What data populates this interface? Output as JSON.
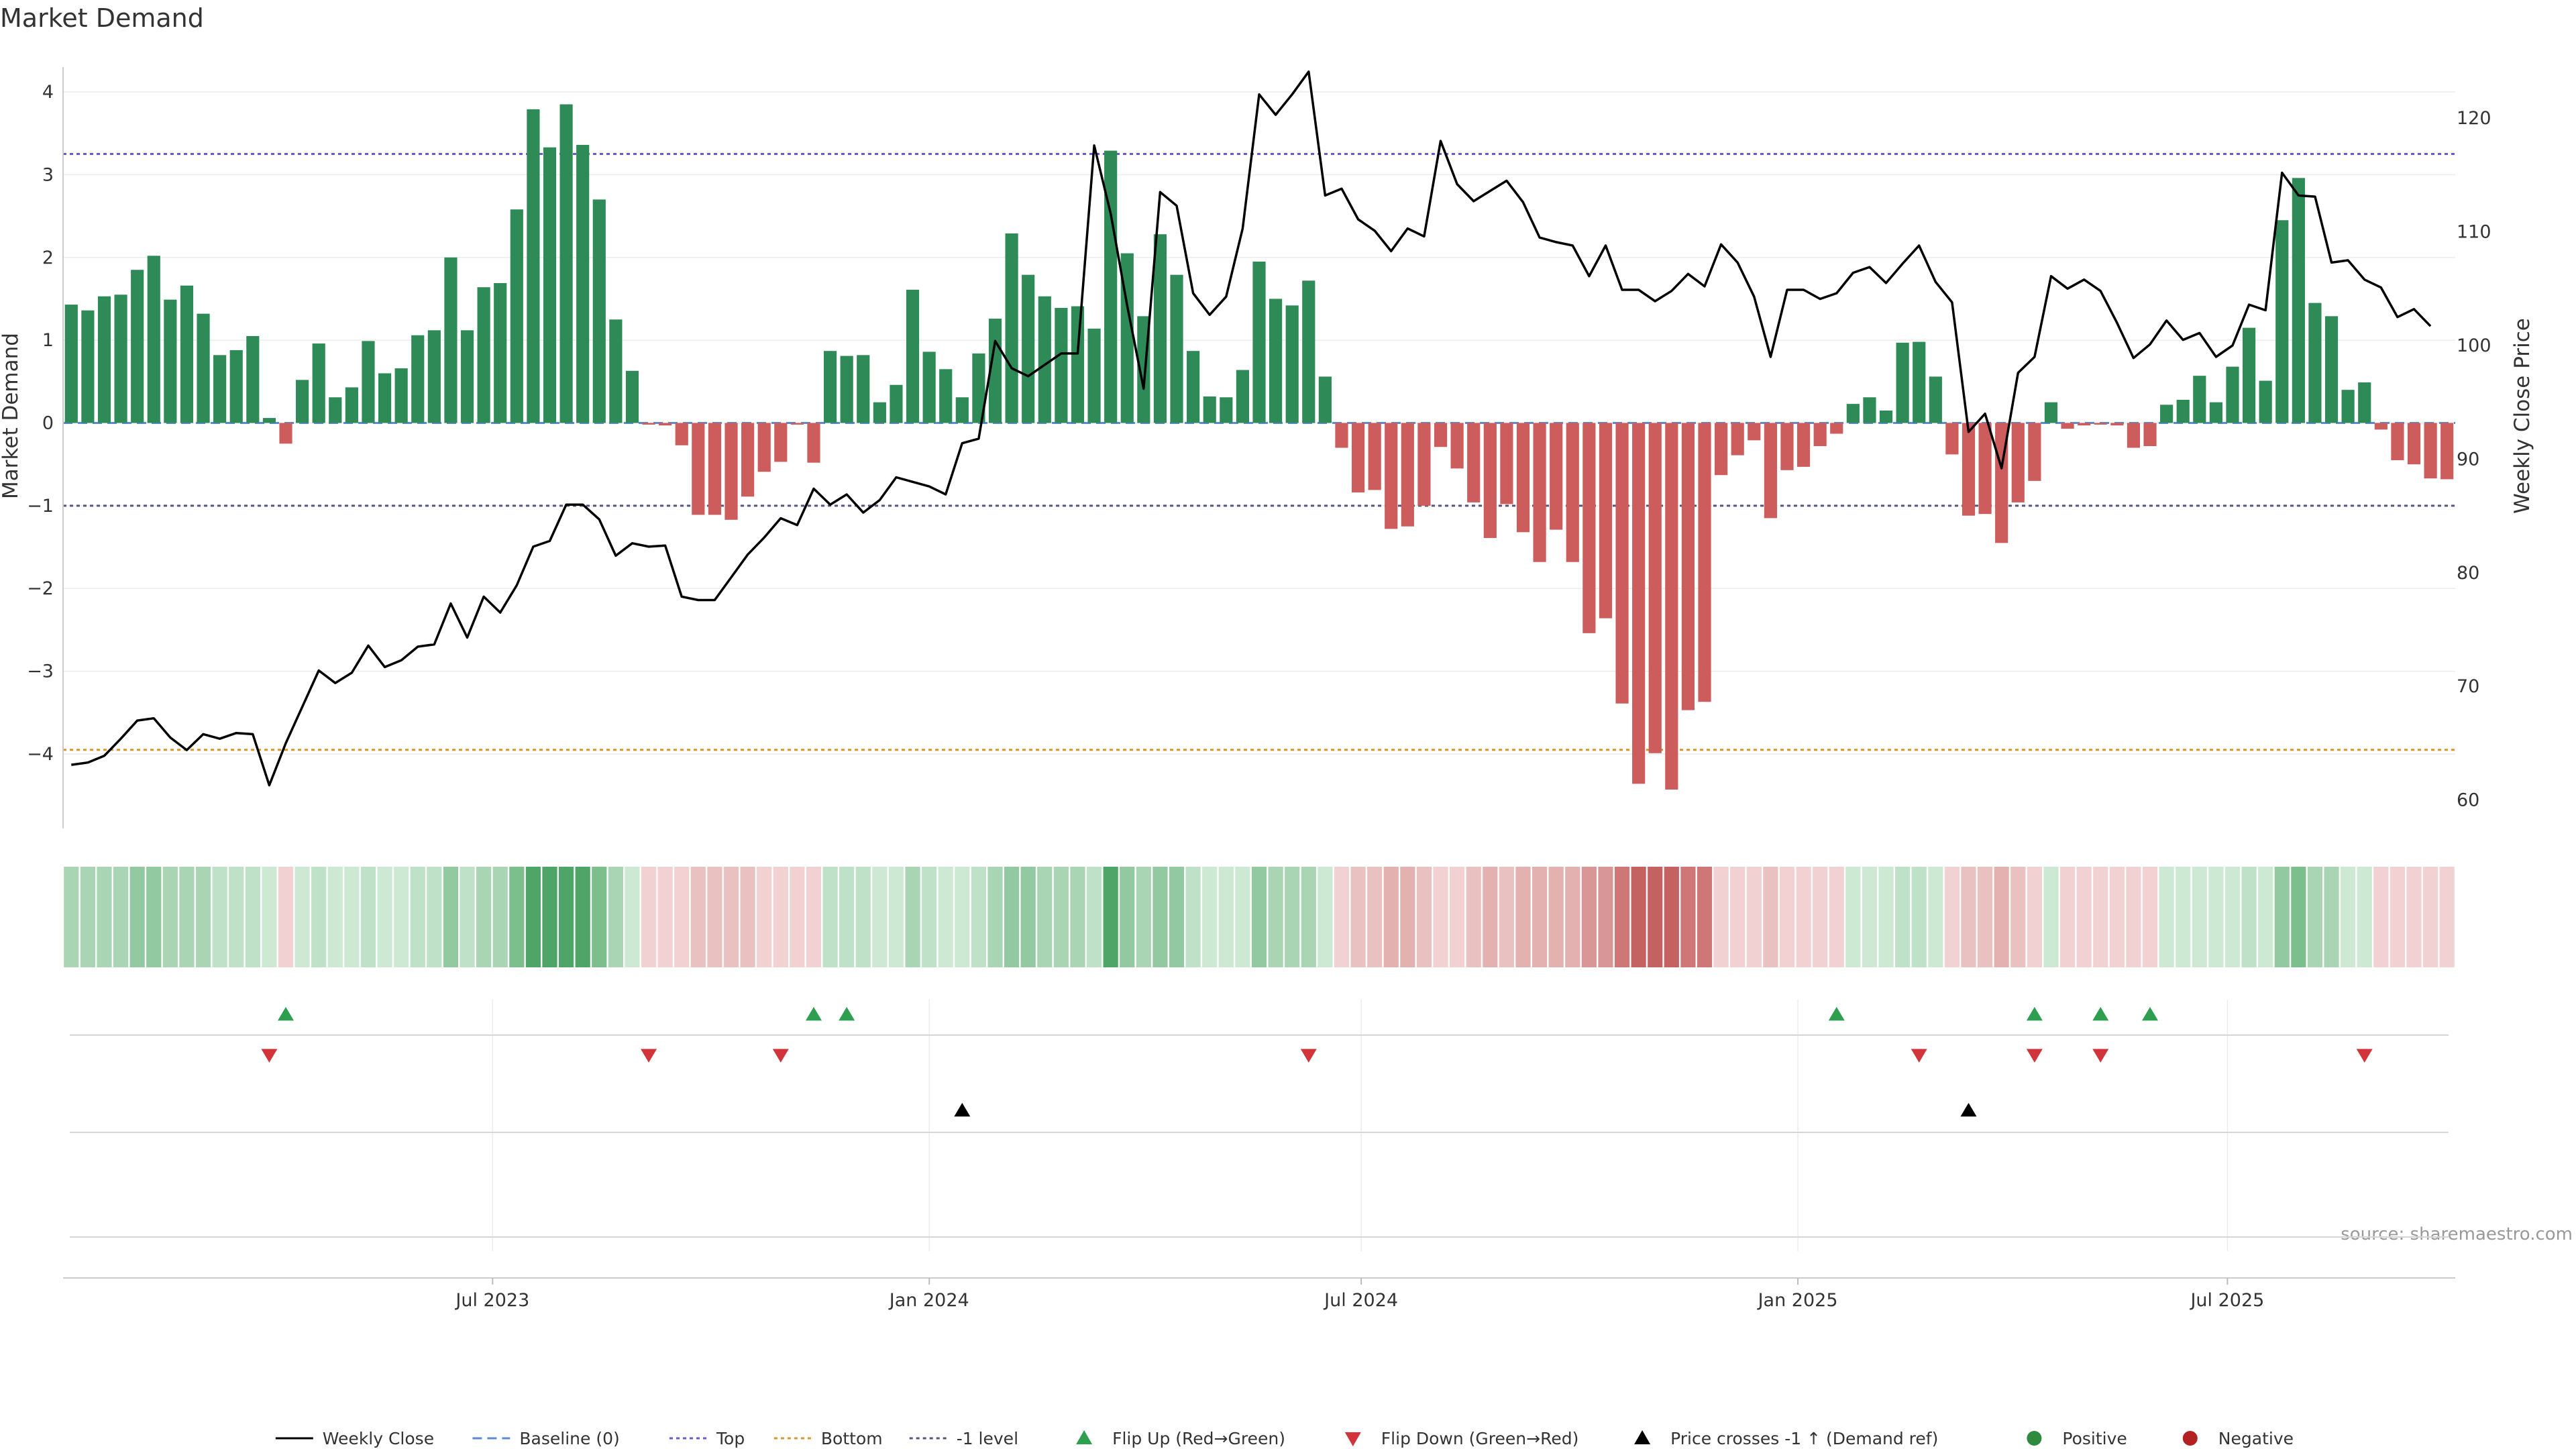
{
  "chart_data": {
    "type": "bar",
    "title": "Market Demand",
    "ylabel_left": "Market Demand",
    "ylabel_right": "Weekly Close Price",
    "ylim_left": [
      -4.9,
      4.3
    ],
    "ylim_right": [
      57.5,
      124.5
    ],
    "yticks_left": [
      4,
      3,
      2,
      1,
      0,
      -1,
      -2,
      -3,
      -4
    ],
    "yticks_right": [
      120,
      110,
      100,
      90,
      80,
      70,
      60
    ],
    "x_start": "2023-01-01",
    "x_end": "2025-10-05",
    "x_ticks": [
      {
        "label": "Jul 2023",
        "date": "2023-07-01"
      },
      {
        "label": "Jan 2024",
        "date": "2024-01-01"
      },
      {
        "label": "Jul 2024",
        "date": "2024-07-01"
      },
      {
        "label": "Jan 2025",
        "date": "2025-01-01"
      },
      {
        "label": "Jul 2025",
        "date": "2025-07-01"
      }
    ],
    "reference_lines": [
      {
        "name": "Top",
        "value": 3.25,
        "color": "#6a5acd"
      },
      {
        "name": "-1 level",
        "value": -1,
        "color": "#555577"
      },
      {
        "name": "Bottom",
        "value": -3.95,
        "color": "#d9962b"
      },
      {
        "name": "Baseline (0)",
        "value": 0,
        "color": "#5b8bd0"
      }
    ],
    "demand": [
      1.43,
      1.36,
      1.53,
      1.55,
      1.85,
      2.02,
      1.49,
      1.66,
      1.32,
      0.82,
      0.88,
      1.05,
      0.06,
      -0.25,
      0.52,
      0.96,
      0.31,
      0.43,
      0.99,
      0.6,
      0.66,
      1.06,
      1.12,
      2.0,
      1.12,
      1.64,
      1.69,
      2.58,
      3.79,
      3.33,
      3.85,
      3.36,
      2.7,
      1.25,
      0.63,
      -0.02,
      -0.03,
      -0.27,
      -1.11,
      -1.11,
      -1.17,
      -0.89,
      -0.59,
      -0.47,
      -0.02,
      -0.48,
      0.87,
      0.81,
      0.82,
      0.25,
      0.46,
      1.61,
      0.86,
      0.65,
      0.31,
      0.84,
      1.26,
      2.29,
      1.79,
      1.53,
      1.39,
      1.41,
      1.14,
      3.29,
      2.05,
      1.29,
      2.28,
      1.79,
      0.87,
      0.32,
      0.31,
      0.64,
      1.95,
      1.5,
      1.42,
      1.72,
      0.56,
      -0.3,
      -0.84,
      -0.81,
      -1.28,
      -1.25,
      -1.0,
      -0.29,
      -0.55,
      -0.96,
      -1.39,
      -0.98,
      -1.32,
      -1.68,
      -1.29,
      -1.68,
      -2.54,
      -2.36,
      -3.39,
      -4.36,
      -3.99,
      -4.43,
      -3.47,
      -3.37,
      -0.63,
      -0.39,
      -0.21,
      -1.15,
      -0.57,
      -0.53,
      -0.28,
      -0.13,
      0.23,
      0.31,
      0.15,
      0.97,
      0.98,
      0.56,
      -0.38,
      -1.12,
      -1.1,
      -1.45,
      -0.96,
      -0.7,
      0.25,
      -0.07,
      -0.03,
      -0.02,
      -0.03,
      -0.3,
      -0.28,
      0.22,
      0.28,
      0.57,
      0.25,
      0.68,
      1.15,
      0.51,
      2.45,
      2.96,
      1.45,
      1.29,
      0.4,
      0.49,
      -0.08,
      -0.45,
      -0.5,
      -0.67,
      -0.68
    ],
    "close": [
      63.1,
      63.3,
      63.9,
      65.4,
      67.0,
      67.2,
      65.5,
      64.4,
      65.8,
      65.4,
      65.9,
      65.8,
      61.3,
      65.0,
      68.2,
      71.4,
      70.3,
      71.2,
      73.6,
      71.7,
      72.3,
      73.5,
      73.7,
      77.3,
      74.3,
      77.9,
      76.5,
      78.9,
      82.3,
      82.8,
      86.0,
      86.0,
      84.7,
      81.5,
      82.6,
      82.3,
      82.4,
      77.9,
      77.6,
      77.6,
      79.6,
      81.6,
      83.1,
      84.8,
      84.2,
      87.4,
      86.0,
      86.9,
      85.3,
      86.4,
      88.4,
      88.0,
      87.6,
      86.9,
      91.4,
      91.8,
      100.4,
      98.0,
      97.3,
      98.3,
      99.3,
      99.3,
      117.6,
      111.6,
      103.5,
      96.2,
      113.5,
      112.3,
      104.6,
      102.7,
      104.3,
      110.3,
      122.1,
      120.3,
      122.1,
      124.1,
      113.2,
      113.8,
      111.1,
      110.1,
      108.3,
      110.3,
      109.6,
      118.0,
      114.2,
      112.7,
      113.6,
      114.5,
      112.6,
      109.5,
      109.1,
      108.8,
      106.1,
      108.8,
      104.9,
      104.9,
      103.9,
      104.8,
      106.3,
      105.2,
      108.9,
      107.3,
      104.3,
      99.0,
      104.9,
      104.9,
      104.1,
      104.6,
      106.4,
      106.9,
      105.5,
      107.2,
      108.8,
      105.6,
      103.8,
      92.4,
      94.0,
      89.2,
      97.6,
      99.0,
      106.1,
      105.0,
      105.8,
      104.8,
      102.0,
      98.9,
      100.1,
      102.2,
      100.5,
      101.1,
      99.0,
      100.0,
      103.6,
      103.1,
      115.2,
      113.2,
      113.1,
      107.3,
      107.5,
      105.8,
      105.1,
      102.5,
      103.2,
      101.7
    ],
    "strength_colors": {
      "pos": [
        "#cde9d4",
        "#bfe1c7",
        "#a9d5b4",
        "#93c9a0",
        "#7dbe8d",
        "#4fa568"
      ],
      "neg": [
        "#f1d1d1",
        "#e9c1c0",
        "#e3b1b0",
        "#d89796",
        "#cf7776",
        "#c46262"
      ]
    },
    "flip_up_weeks": [
      13,
      45,
      47,
      107,
      119,
      123,
      126
    ],
    "flip_down_weeks": [
      12,
      35,
      43,
      75,
      112,
      119,
      123,
      139
    ],
    "price_cross_weeks": [
      54,
      115
    ],
    "legend": [
      {
        "label": "Weekly Close",
        "symbol": "line",
        "color": "#000000"
      },
      {
        "label": "Baseline (0)",
        "symbol": "dashed",
        "color": "#5b8bd0"
      },
      {
        "label": "Top",
        "symbol": "dotted",
        "color": "#6a5acd"
      },
      {
        "label": "Bottom",
        "symbol": "dotted",
        "color": "#d9962b"
      },
      {
        "label": "-1 level",
        "symbol": "dotted",
        "color": "#555577"
      },
      {
        "label": "Flip Up (Red→Green)",
        "symbol": "triangle-up",
        "color": "#2e9e4f"
      },
      {
        "label": "Flip Down (Green→Red)",
        "symbol": "triangle-down",
        "color": "#d1343a"
      },
      {
        "label": "Price crosses -1 ↑ (Demand ref)",
        "symbol": "triangle-up",
        "color": "#000000"
      },
      {
        "label": "Positive",
        "symbol": "circle",
        "color": "#2e8b3e"
      },
      {
        "label": "Negative",
        "symbol": "circle",
        "color": "#b22222"
      }
    ],
    "bar_colors": {
      "positive": "#2e8b57",
      "negative": "#cd5c5c"
    },
    "source": "source: sharemaestro.com"
  }
}
